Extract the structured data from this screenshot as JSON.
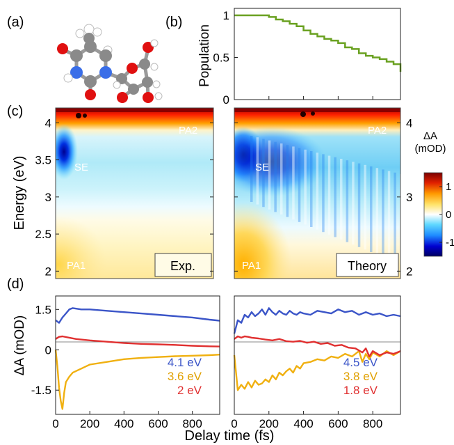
{
  "panels": {
    "a": {
      "label": "(a)"
    },
    "b": {
      "label": "(b)"
    },
    "c": {
      "label": "(c)"
    },
    "d": {
      "label": "(d)"
    }
  },
  "chart_data": [
    {
      "id": "b",
      "type": "line",
      "title": "",
      "xlabel": "",
      "ylabel": "Population",
      "xlim": [
        0,
        960
      ],
      "ylim": [
        0,
        1
      ],
      "yticks": [
        0,
        0.5,
        1
      ],
      "ytick_labels": [
        "0",
        "0.5",
        "1"
      ],
      "xticks": [
        0,
        200,
        400,
        600,
        800
      ],
      "grid": false,
      "series": [
        {
          "color": "#6aa121",
          "x": [
            0,
            40,
            80,
            120,
            160,
            200,
            240,
            280,
            320,
            360,
            400,
            440,
            480,
            520,
            560,
            600,
            640,
            680,
            720,
            760,
            800,
            840,
            880,
            920,
            960
          ],
          "y": [
            1,
            1,
            1,
            1,
            1,
            0.98,
            0.95,
            0.93,
            0.9,
            0.87,
            0.82,
            0.78,
            0.75,
            0.72,
            0.7,
            0.67,
            0.62,
            0.6,
            0.55,
            0.52,
            0.5,
            0.48,
            0.45,
            0.42,
            0.33
          ]
        }
      ]
    },
    {
      "id": "c-exp",
      "type": "heatmap",
      "xlim": [
        0,
        960
      ],
      "ylim": [
        1.9,
        4.2
      ],
      "ylabel": "Energy (eV)",
      "yticks": [
        2,
        2.5,
        3,
        3.5,
        4
      ],
      "ytick_labels": [
        "2",
        "2.5",
        "3",
        "3.5",
        "4"
      ],
      "box_label": "Exp.",
      "annotations": [
        "PA2",
        "SE",
        "PA1"
      ]
    },
    {
      "id": "c-theory",
      "type": "heatmap",
      "xlim": [
        0,
        960
      ],
      "ylim": [
        1.9,
        4.2
      ],
      "yticks": [
        2,
        3,
        4
      ],
      "ytick_labels": [
        "2",
        "3",
        "4"
      ],
      "box_label": "Theory",
      "annotations": [
        "PA2",
        "SE",
        "PA1"
      ]
    },
    {
      "id": "colorbar",
      "type": "colorbar",
      "title_line1": "ΔA",
      "title_line2": "(mOD)",
      "range": [
        -1.5,
        1.5
      ],
      "ticks": [
        1,
        0,
        -1
      ],
      "tick_labels": [
        "1",
        "0",
        "-1"
      ],
      "colors": [
        "#000060",
        "#0000d0",
        "#1e8cff",
        "#5fd8ff",
        "#ffffff",
        "#ffe36a",
        "#ff9a00",
        "#e02000",
        "#7a0000"
      ]
    },
    {
      "id": "d-exp",
      "type": "line",
      "xlabel": "",
      "ylabel": "ΔA (mOD)",
      "xlim": [
        0,
        960
      ],
      "ylim": [
        -2.4,
        2.0
      ],
      "yticks": [
        1.5,
        0,
        -1.5
      ],
      "ytick_labels": [
        "1.5",
        "0",
        "-1.5"
      ],
      "xticks": [
        0,
        200,
        400,
        600,
        800
      ],
      "xtick_labels": [
        "0",
        "200",
        "400",
        "600",
        "800"
      ],
      "series": [
        {
          "name": "4.1 eV",
          "color": "#3b55c8",
          "x": [
            0,
            20,
            40,
            60,
            80,
            100,
            150,
            200,
            300,
            400,
            500,
            600,
            700,
            800,
            900,
            960
          ],
          "y": [
            1.1,
            1.0,
            1.2,
            1.35,
            1.5,
            1.55,
            1.5,
            1.5,
            1.45,
            1.4,
            1.35,
            1.3,
            1.25,
            1.2,
            1.12,
            1.08
          ]
        },
        {
          "name": "3.6 eV",
          "color": "#f0b010",
          "x": [
            0,
            10,
            20,
            30,
            40,
            50,
            60,
            80,
            100,
            150,
            200,
            300,
            400,
            500,
            600,
            700,
            800,
            900,
            960
          ],
          "y": [
            0,
            -0.6,
            -1.4,
            -1.9,
            -2.2,
            -1.6,
            -1.2,
            -1.0,
            -0.85,
            -0.7,
            -0.55,
            -0.45,
            -0.35,
            -0.3,
            -0.27,
            -0.24,
            -0.22,
            -0.2,
            -0.18
          ]
        },
        {
          "name": "2 eV",
          "color": "#e03030",
          "x": [
            0,
            20,
            40,
            80,
            120,
            200,
            300,
            400,
            500,
            600,
            700,
            800,
            900,
            960
          ],
          "y": [
            0.4,
            0.48,
            0.5,
            0.45,
            0.4,
            0.35,
            0.3,
            0.25,
            0.22,
            0.2,
            0.18,
            0.15,
            0.13,
            0.12
          ]
        }
      ]
    },
    {
      "id": "d-theory",
      "type": "line",
      "xlim": [
        0,
        960
      ],
      "ylim": [
        -2.4,
        2.0
      ],
      "xticks": [
        0,
        200,
        400,
        600,
        800
      ],
      "xtick_labels": [
        "0",
        "200",
        "400",
        "600",
        "800"
      ],
      "series": [
        {
          "name": "4.5 eV",
          "color": "#3b55c8",
          "x": [
            0,
            20,
            40,
            60,
            80,
            100,
            120,
            140,
            160,
            180,
            200,
            220,
            240,
            260,
            280,
            300,
            320,
            340,
            360,
            380,
            400,
            440,
            480,
            520,
            560,
            600,
            640,
            680,
            720,
            760,
            800,
            840,
            880,
            920,
            960
          ],
          "y": [
            0.6,
            1.1,
            1.0,
            1.3,
            1.2,
            1.4,
            1.25,
            1.35,
            1.5,
            1.3,
            1.55,
            1.4,
            1.3,
            1.45,
            1.35,
            1.3,
            1.45,
            1.35,
            1.3,
            1.4,
            1.35,
            1.3,
            1.45,
            1.4,
            1.35,
            1.5,
            1.4,
            1.45,
            1.3,
            1.4,
            1.3,
            1.35,
            1.25,
            1.3,
            1.25
          ]
        },
        {
          "name": "3.8 eV",
          "color": "#f0b010",
          "x": [
            0,
            20,
            40,
            60,
            80,
            100,
            120,
            140,
            160,
            180,
            200,
            220,
            240,
            260,
            280,
            300,
            320,
            340,
            360,
            380,
            400,
            440,
            480,
            520,
            560,
            600,
            640,
            680,
            720,
            740,
            760,
            780,
            800,
            840,
            880,
            920,
            960
          ],
          "y": [
            -0.2,
            -1.5,
            -1.3,
            -1.45,
            -1.2,
            -1.4,
            -1.15,
            -1.3,
            -1.25,
            -1.1,
            -1.2,
            -0.95,
            -1.1,
            -0.85,
            -0.95,
            -0.8,
            -0.7,
            -0.85,
            -0.6,
            -0.7,
            -0.5,
            -0.45,
            -0.35,
            -0.4,
            -0.25,
            -0.3,
            -0.15,
            -0.25,
            -0.05,
            -0.45,
            -0.15,
            -0.35,
            -0.1,
            -0.25,
            -0.05,
            -0.2,
            -0.05
          ]
        },
        {
          "name": "1.8 eV",
          "color": "#e03030",
          "x": [
            0,
            20,
            40,
            60,
            80,
            100,
            140,
            180,
            220,
            260,
            300,
            340,
            380,
            420,
            460,
            500,
            540,
            580,
            620,
            660,
            700,
            740,
            760,
            780,
            800,
            840,
            880,
            920,
            960
          ],
          "y": [
            0.4,
            0.5,
            0.45,
            0.5,
            0.48,
            0.45,
            0.42,
            0.38,
            0.35,
            0.4,
            0.32,
            0.3,
            0.33,
            0.26,
            0.3,
            0.22,
            0.25,
            0.15,
            0.18,
            0.08,
            0.05,
            -0.1,
            0.05,
            -0.25,
            -0.05,
            -0.2,
            -0.1,
            -0.15,
            -0.05
          ]
        }
      ]
    }
  ],
  "shared_xlabel": "Delay time (fs)",
  "molecule": {
    "atoms": [
      {
        "element": "C",
        "color": "#8a8a8a"
      },
      {
        "element": "O",
        "color": "#e01010"
      },
      {
        "element": "N",
        "color": "#3a6ee8"
      },
      {
        "element": "H",
        "color": "#f0f0f0"
      }
    ]
  }
}
